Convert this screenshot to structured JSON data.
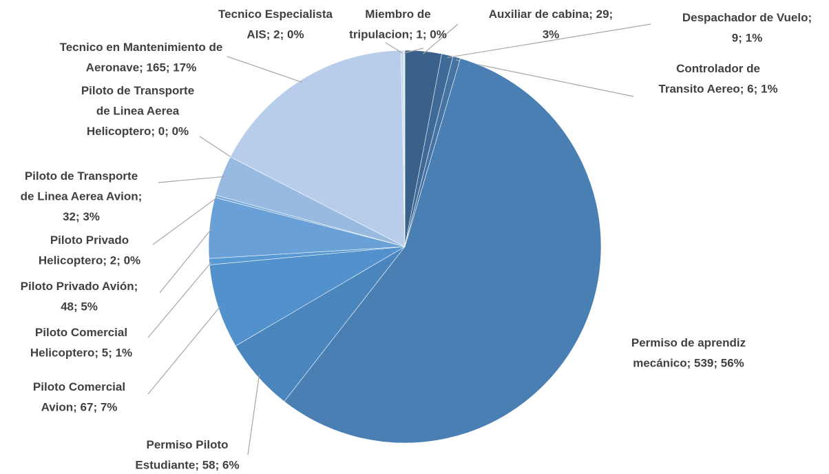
{
  "chart_data": {
    "type": "pie",
    "values": [
      29,
      9,
      6,
      539,
      58,
      67,
      5,
      48,
      2,
      32,
      0,
      165,
      2,
      1
    ],
    "value_labels": [
      "Auxiliar de cabina; 29; 3%",
      "Despachador de Vuelo; 9; 1%",
      "Controlador de Transito Aereo; 6; 1%",
      "Permiso de aprendiz mecánico; 539; 56%",
      "Permiso Piloto Estudiante; 58; 6%",
      "Piloto Comercial Avion; 67; 7%",
      "Piloto Comercial Helicoptero; 5; 1%",
      "Piloto Privado Avión; 48; 5%",
      "Piloto Privado Helicoptero; 2; 0%",
      "Piloto de Transporte de Linea Aerea Avion; 32; 3%",
      "Piloto de Transporte de Linea Aerea Helicoptero; 0; 0%",
      "Tecnico en Mantenimiento de Aeronave; 165; 17%",
      "Tecnico Especialista AIS; 2; 0%",
      "Miembro de tripulacion; 1; 0%"
    ],
    "colors": [
      "#3a6189",
      "#3f6a97",
      "#4573a4",
      "#4a7fb4",
      "#4b85bd",
      "#5291cb",
      "#5899d3",
      "#69a0d8",
      "#7aaadb",
      "#98b9e0",
      "#a9c4e5",
      "#b8cde9",
      "#c8d8ee",
      "#d6e2f2"
    ]
  }
}
